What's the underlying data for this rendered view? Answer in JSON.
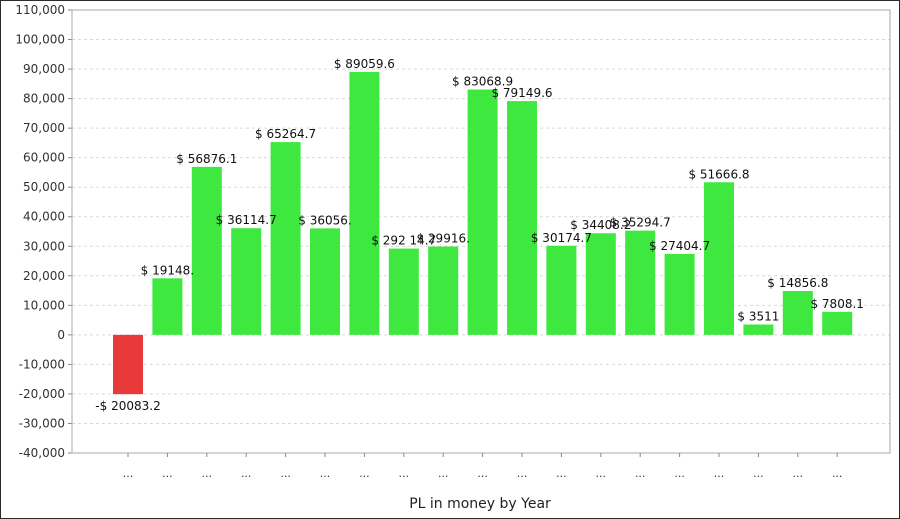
{
  "chart_data": {
    "type": "bar",
    "title": "",
    "xlabel": "PL in money by Year",
    "ylabel": "",
    "ylim": [
      -40000,
      110000
    ],
    "grid": true,
    "legend": "none",
    "yticks": [
      110000,
      100000,
      90000,
      80000,
      70000,
      60000,
      50000,
      40000,
      30000,
      20000,
      10000,
      0,
      -10000,
      -20000,
      -30000,
      -40000
    ],
    "ytick_labels": [
      "110,000",
      "100,000",
      "90,000",
      "80,000",
      "70,000",
      "60,000",
      "50,000",
      "40,000",
      "30,000",
      "20,000",
      "10,000",
      "0",
      "-10,000",
      "-20,000",
      "-30,000",
      "-40,000"
    ],
    "categories": [
      "...",
      "...",
      "...",
      "...",
      "...",
      "...",
      "...",
      "...",
      "...",
      "...",
      "...",
      "...",
      "...",
      "...",
      "...",
      "...",
      "...",
      "...",
      "..."
    ],
    "values": [
      -20083.2,
      19148,
      56876.1,
      36114.7,
      65264.7,
      36056,
      89059.6,
      29214.7,
      29916,
      83068.9,
      79149.6,
      30174.7,
      34408.2,
      35294.7,
      27404.7,
      51666.8,
      3511,
      14856.8,
      7808.1
    ],
    "data_labels": [
      "-$ 20083.2",
      "$ 19148.",
      "$ 56876.1",
      "$ 36114.7",
      "$ 65264.7",
      "$ 36056.",
      "$ 89059.6",
      "$ 292 14.7",
      "$ 29916.",
      "$ 83068.9",
      "$ 79149.6",
      "$ 30174.7",
      "$ 34408.2",
      "$ 35294.7",
      "$ 27404.7",
      "$ 51666.8",
      "$ 3511",
      "$ 14856.8",
      "$ 7808.1"
    ],
    "colors": {
      "positive": "#3ee83e",
      "negative": "#e8393b",
      "grid": "#d9d9d9",
      "axis": "#888888"
    }
  }
}
